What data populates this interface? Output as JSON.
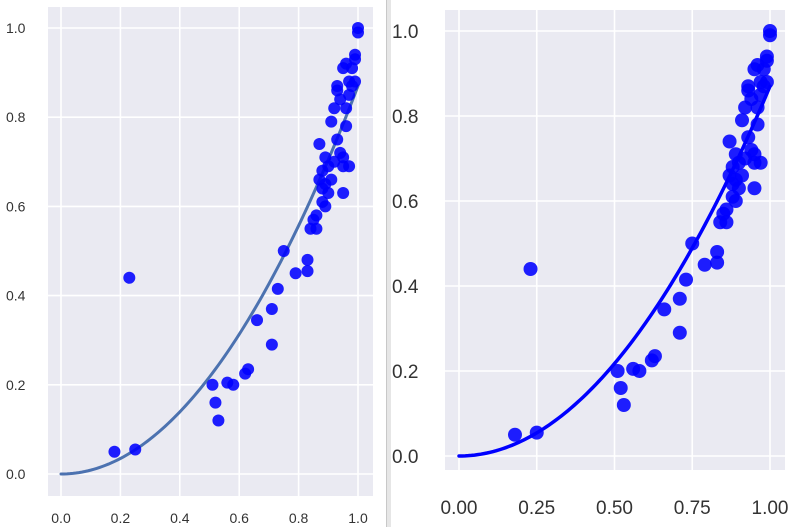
{
  "chart_data": [
    {
      "type": "scatter",
      "title": "",
      "xlabel": "",
      "ylabel": "",
      "xlim": [
        -0.04,
        1.05
      ],
      "ylim": [
        -0.05,
        1.05
      ],
      "grid": true,
      "xticks": [
        "0.0",
        "0.2",
        "0.4",
        "0.6",
        "0.8",
        "1.0"
      ],
      "yticks": [
        "0.0",
        "0.2",
        "0.4",
        "0.6",
        "0.8",
        "1.0"
      ],
      "background": "#eaeaf2",
      "marker_color": "#0000ff",
      "fit_line": {
        "type": "line",
        "formula": "y = 0.87 * x^2",
        "color": "#4c72b0",
        "x_range": [
          0.0,
          1.0
        ]
      },
      "points": [
        [
          0.18,
          0.05
        ],
        [
          0.25,
          0.055
        ],
        [
          0.23,
          0.44
        ],
        [
          0.51,
          0.2
        ],
        [
          0.52,
          0.16
        ],
        [
          0.53,
          0.12
        ],
        [
          0.56,
          0.205
        ],
        [
          0.58,
          0.2
        ],
        [
          0.62,
          0.225
        ],
        [
          0.63,
          0.235
        ],
        [
          0.66,
          0.345
        ],
        [
          0.71,
          0.37
        ],
        [
          0.71,
          0.29
        ],
        [
          0.73,
          0.415
        ],
        [
          0.75,
          0.5
        ],
        [
          0.79,
          0.45
        ],
        [
          0.83,
          0.48
        ],
        [
          0.83,
          0.455
        ],
        [
          0.84,
          0.55
        ],
        [
          0.85,
          0.57
        ],
        [
          0.86,
          0.58
        ],
        [
          0.86,
          0.55
        ],
        [
          0.87,
          0.66
        ],
        [
          0.87,
          0.74
        ],
        [
          0.88,
          0.68
        ],
        [
          0.88,
          0.64
        ],
        [
          0.88,
          0.61
        ],
        [
          0.89,
          0.65
        ],
        [
          0.89,
          0.6
        ],
        [
          0.89,
          0.71
        ],
        [
          0.9,
          0.69
        ],
        [
          0.9,
          0.63
        ],
        [
          0.91,
          0.79
        ],
        [
          0.91,
          0.66
        ],
        [
          0.92,
          0.82
        ],
        [
          0.92,
          0.7
        ],
        [
          0.93,
          0.75
        ],
        [
          0.93,
          0.86
        ],
        [
          0.93,
          0.87
        ],
        [
          0.94,
          0.84
        ],
        [
          0.94,
          0.72
        ],
        [
          0.95,
          0.71
        ],
        [
          0.95,
          0.69
        ],
        [
          0.95,
          0.91
        ],
        [
          0.95,
          0.63
        ],
        [
          0.96,
          0.92
        ],
        [
          0.96,
          0.82
        ],
        [
          0.96,
          0.78
        ],
        [
          0.97,
          0.69
        ],
        [
          0.97,
          0.85
        ],
        [
          0.97,
          0.88
        ],
        [
          0.98,
          0.91
        ],
        [
          0.98,
          0.87
        ],
        [
          0.99,
          0.88
        ],
        [
          0.99,
          0.94
        ],
        [
          0.99,
          0.93
        ],
        [
          1.0,
          0.99
        ],
        [
          1.0,
          1.0
        ]
      ]
    },
    {
      "type": "scatter",
      "title": "",
      "xlabel": "",
      "ylabel": "",
      "xlim": [
        -0.05,
        1.05
      ],
      "ylim": [
        -0.05,
        1.06
      ],
      "grid": true,
      "xticks": [
        "0.00",
        "0.25",
        "0.50",
        "0.75",
        "1.00"
      ],
      "yticks": [
        "0.0",
        "0.2",
        "0.4",
        "0.6",
        "0.8",
        "1.0"
      ],
      "background": "#eaeaf2",
      "marker_color": "#0000ff",
      "fit_line": {
        "type": "line",
        "formula": "y = 0.87 * x^2",
        "color": "#0000ff",
        "x_range": [
          0.0,
          1.0
        ]
      },
      "points": "same as panel 1"
    }
  ],
  "left": {
    "xticks": [
      "0.0",
      "0.2",
      "0.4",
      "0.6",
      "0.8",
      "1.0"
    ],
    "yticks": [
      "0.0",
      "0.2",
      "0.4",
      "0.6",
      "0.8",
      "1.0"
    ]
  },
  "right": {
    "xticks": [
      "0.00",
      "0.25",
      "0.50",
      "0.75",
      "1.00"
    ],
    "yticks": [
      "0.0",
      "0.2",
      "0.4",
      "0.6",
      "0.8",
      "1.0"
    ]
  }
}
